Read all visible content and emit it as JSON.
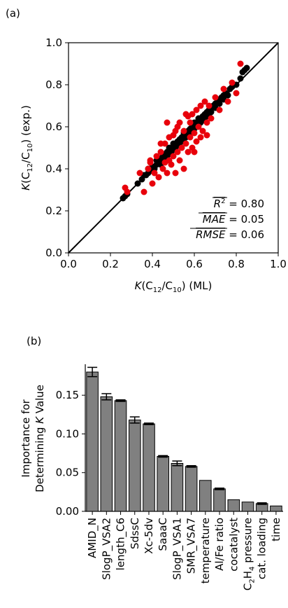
{
  "chart_data": [
    {
      "type": "scatter",
      "panel_label": "(a)",
      "xlabel": "K(C12/C10) (ML)",
      "ylabel": "K(C12/C10) (exp.)",
      "xlim": [
        0.0,
        1.0
      ],
      "ylim": [
        0.0,
        1.0
      ],
      "x_ticks": [
        "0.0",
        "0.2",
        "0.4",
        "0.6",
        "0.8",
        "1.0"
      ],
      "y_ticks": [
        "0.0",
        "0.2",
        "0.4",
        "0.6",
        "0.8",
        "1.0"
      ],
      "grid": false,
      "reference_line": "y = x",
      "metrics": [
        {
          "name": "R²",
          "value": "0.80"
        },
        {
          "name": "MAE",
          "value": "0.05"
        },
        {
          "name": "RMSE",
          "value": "0.06"
        }
      ],
      "series": [
        {
          "color": "#000000",
          "points": [
            [
              0.26,
              0.26
            ],
            [
              0.27,
              0.27
            ],
            [
              0.28,
              0.28
            ],
            [
              0.33,
              0.33
            ],
            [
              0.35,
              0.35
            ],
            [
              0.36,
              0.37
            ],
            [
              0.37,
              0.37
            ],
            [
              0.38,
              0.38
            ],
            [
              0.38,
              0.4
            ],
            [
              0.4,
              0.39
            ],
            [
              0.4,
              0.41
            ],
            [
              0.41,
              0.4
            ],
            [
              0.42,
              0.42
            ],
            [
              0.42,
              0.44
            ],
            [
              0.43,
              0.43
            ],
            [
              0.44,
              0.42
            ],
            [
              0.44,
              0.45
            ],
            [
              0.45,
              0.44
            ],
            [
              0.45,
              0.46
            ],
            [
              0.46,
              0.45
            ],
            [
              0.46,
              0.47
            ],
            [
              0.47,
              0.46
            ],
            [
              0.47,
              0.48
            ],
            [
              0.48,
              0.47
            ],
            [
              0.48,
              0.49
            ],
            [
              0.48,
              0.5
            ],
            [
              0.49,
              0.48
            ],
            [
              0.49,
              0.5
            ],
            [
              0.5,
              0.49
            ],
            [
              0.5,
              0.51
            ],
            [
              0.5,
              0.52
            ],
            [
              0.51,
              0.5
            ],
            [
              0.51,
              0.52
            ],
            [
              0.52,
              0.51
            ],
            [
              0.52,
              0.53
            ],
            [
              0.53,
              0.52
            ],
            [
              0.53,
              0.54
            ],
            [
              0.54,
              0.53
            ],
            [
              0.54,
              0.55
            ],
            [
              0.55,
              0.54
            ],
            [
              0.55,
              0.56
            ],
            [
              0.55,
              0.57
            ],
            [
              0.56,
              0.55
            ],
            [
              0.56,
              0.57
            ],
            [
              0.57,
              0.56
            ],
            [
              0.57,
              0.58
            ],
            [
              0.58,
              0.57
            ],
            [
              0.58,
              0.59
            ],
            [
              0.59,
              0.58
            ],
            [
              0.59,
              0.6
            ],
            [
              0.6,
              0.59
            ],
            [
              0.6,
              0.61
            ],
            [
              0.6,
              0.62
            ],
            [
              0.61,
              0.6
            ],
            [
              0.61,
              0.62
            ],
            [
              0.62,
              0.61
            ],
            [
              0.62,
              0.63
            ],
            [
              0.62,
              0.64
            ],
            [
              0.63,
              0.62
            ],
            [
              0.63,
              0.64
            ],
            [
              0.64,
              0.63
            ],
            [
              0.64,
              0.65
            ],
            [
              0.65,
              0.64
            ],
            [
              0.65,
              0.66
            ],
            [
              0.66,
              0.65
            ],
            [
              0.66,
              0.67
            ],
            [
              0.67,
              0.66
            ],
            [
              0.67,
              0.68
            ],
            [
              0.68,
              0.67
            ],
            [
              0.68,
              0.69
            ],
            [
              0.69,
              0.7
            ],
            [
              0.7,
              0.69
            ],
            [
              0.7,
              0.71
            ],
            [
              0.71,
              0.72
            ],
            [
              0.72,
              0.71
            ],
            [
              0.72,
              0.73
            ],
            [
              0.73,
              0.74
            ],
            [
              0.74,
              0.73
            ],
            [
              0.74,
              0.75
            ],
            [
              0.75,
              0.76
            ],
            [
              0.76,
              0.75
            ],
            [
              0.77,
              0.78
            ],
            [
              0.78,
              0.79
            ],
            [
              0.79,
              0.8
            ],
            [
              0.8,
              0.8
            ],
            [
              0.82,
              0.83
            ],
            [
              0.83,
              0.86
            ],
            [
              0.84,
              0.87
            ],
            [
              0.85,
              0.88
            ]
          ]
        },
        {
          "color": "#e8000b",
          "points": [
            [
              0.27,
              0.31
            ],
            [
              0.28,
              0.29
            ],
            [
              0.34,
              0.38
            ],
            [
              0.36,
              0.29
            ],
            [
              0.38,
              0.4
            ],
            [
              0.39,
              0.43
            ],
            [
              0.4,
              0.33
            ],
            [
              0.41,
              0.38
            ],
            [
              0.42,
              0.46
            ],
            [
              0.43,
              0.36
            ],
            [
              0.44,
              0.48
            ],
            [
              0.45,
              0.4
            ],
            [
              0.46,
              0.52
            ],
            [
              0.46,
              0.43
            ],
            [
              0.47,
              0.38
            ],
            [
              0.48,
              0.55
            ],
            [
              0.48,
              0.44
            ],
            [
              0.49,
              0.42
            ],
            [
              0.5,
              0.56
            ],
            [
              0.5,
              0.46
            ],
            [
              0.51,
              0.38
            ],
            [
              0.52,
              0.6
            ],
            [
              0.52,
              0.48
            ],
            [
              0.53,
              0.44
            ],
            [
              0.53,
              0.62
            ],
            [
              0.54,
              0.5
            ],
            [
              0.55,
              0.4
            ],
            [
              0.55,
              0.58
            ],
            [
              0.56,
              0.52
            ],
            [
              0.57,
              0.65
            ],
            [
              0.57,
              0.48
            ],
            [
              0.58,
              0.55
            ],
            [
              0.59,
              0.66
            ],
            [
              0.59,
              0.5
            ],
            [
              0.6,
              0.57
            ],
            [
              0.61,
              0.68
            ],
            [
              0.61,
              0.53
            ],
            [
              0.62,
              0.6
            ],
            [
              0.63,
              0.7
            ],
            [
              0.63,
              0.55
            ],
            [
              0.64,
              0.58
            ],
            [
              0.65,
              0.72
            ],
            [
              0.66,
              0.62
            ],
            [
              0.67,
              0.7
            ],
            [
              0.68,
              0.64
            ],
            [
              0.7,
              0.74
            ],
            [
              0.72,
              0.68
            ],
            [
              0.74,
              0.78
            ],
            [
              0.76,
              0.72
            ],
            [
              0.78,
              0.81
            ],
            [
              0.8,
              0.76
            ],
            [
              0.82,
              0.9
            ],
            [
              0.47,
              0.62
            ],
            [
              0.56,
              0.66
            ],
            [
              0.44,
              0.52
            ],
            [
              0.6,
              0.48
            ],
            [
              0.66,
              0.56
            ],
            [
              0.51,
              0.58
            ],
            [
              0.39,
              0.44
            ],
            [
              0.58,
              0.62
            ]
          ]
        }
      ]
    },
    {
      "type": "bar",
      "panel_label": "(b)",
      "ylabel_line1": "Importance for",
      "ylabel_line2": "Determining K Value",
      "ylim": [
        0.0,
        0.19
      ],
      "y_ticks": [
        "0.00",
        "0.05",
        "0.10",
        "0.15"
      ],
      "categories": [
        "AMID_N",
        "SlogP_VSA2",
        "length_C6",
        "SdssC",
        "Xc-5dv",
        "SaaaC",
        "SlogP_VSA1",
        "SMR_VSA7",
        "temperature",
        "Al/Fe ratio",
        "cocatalyst",
        "C2H4 pressure",
        "cat. loading",
        "time"
      ],
      "values": [
        0.18,
        0.148,
        0.143,
        0.118,
        0.113,
        0.071,
        0.062,
        0.058,
        0.04,
        0.029,
        0.015,
        0.012,
        0.01,
        0.007
      ],
      "errors": [
        0.006,
        0.004,
        0.001,
        0.004,
        0.001,
        0.001,
        0.003,
        0.001,
        0.0,
        0.001,
        0.0,
        0.0,
        0.001,
        0.0
      ],
      "bar_color": "#808080"
    }
  ]
}
